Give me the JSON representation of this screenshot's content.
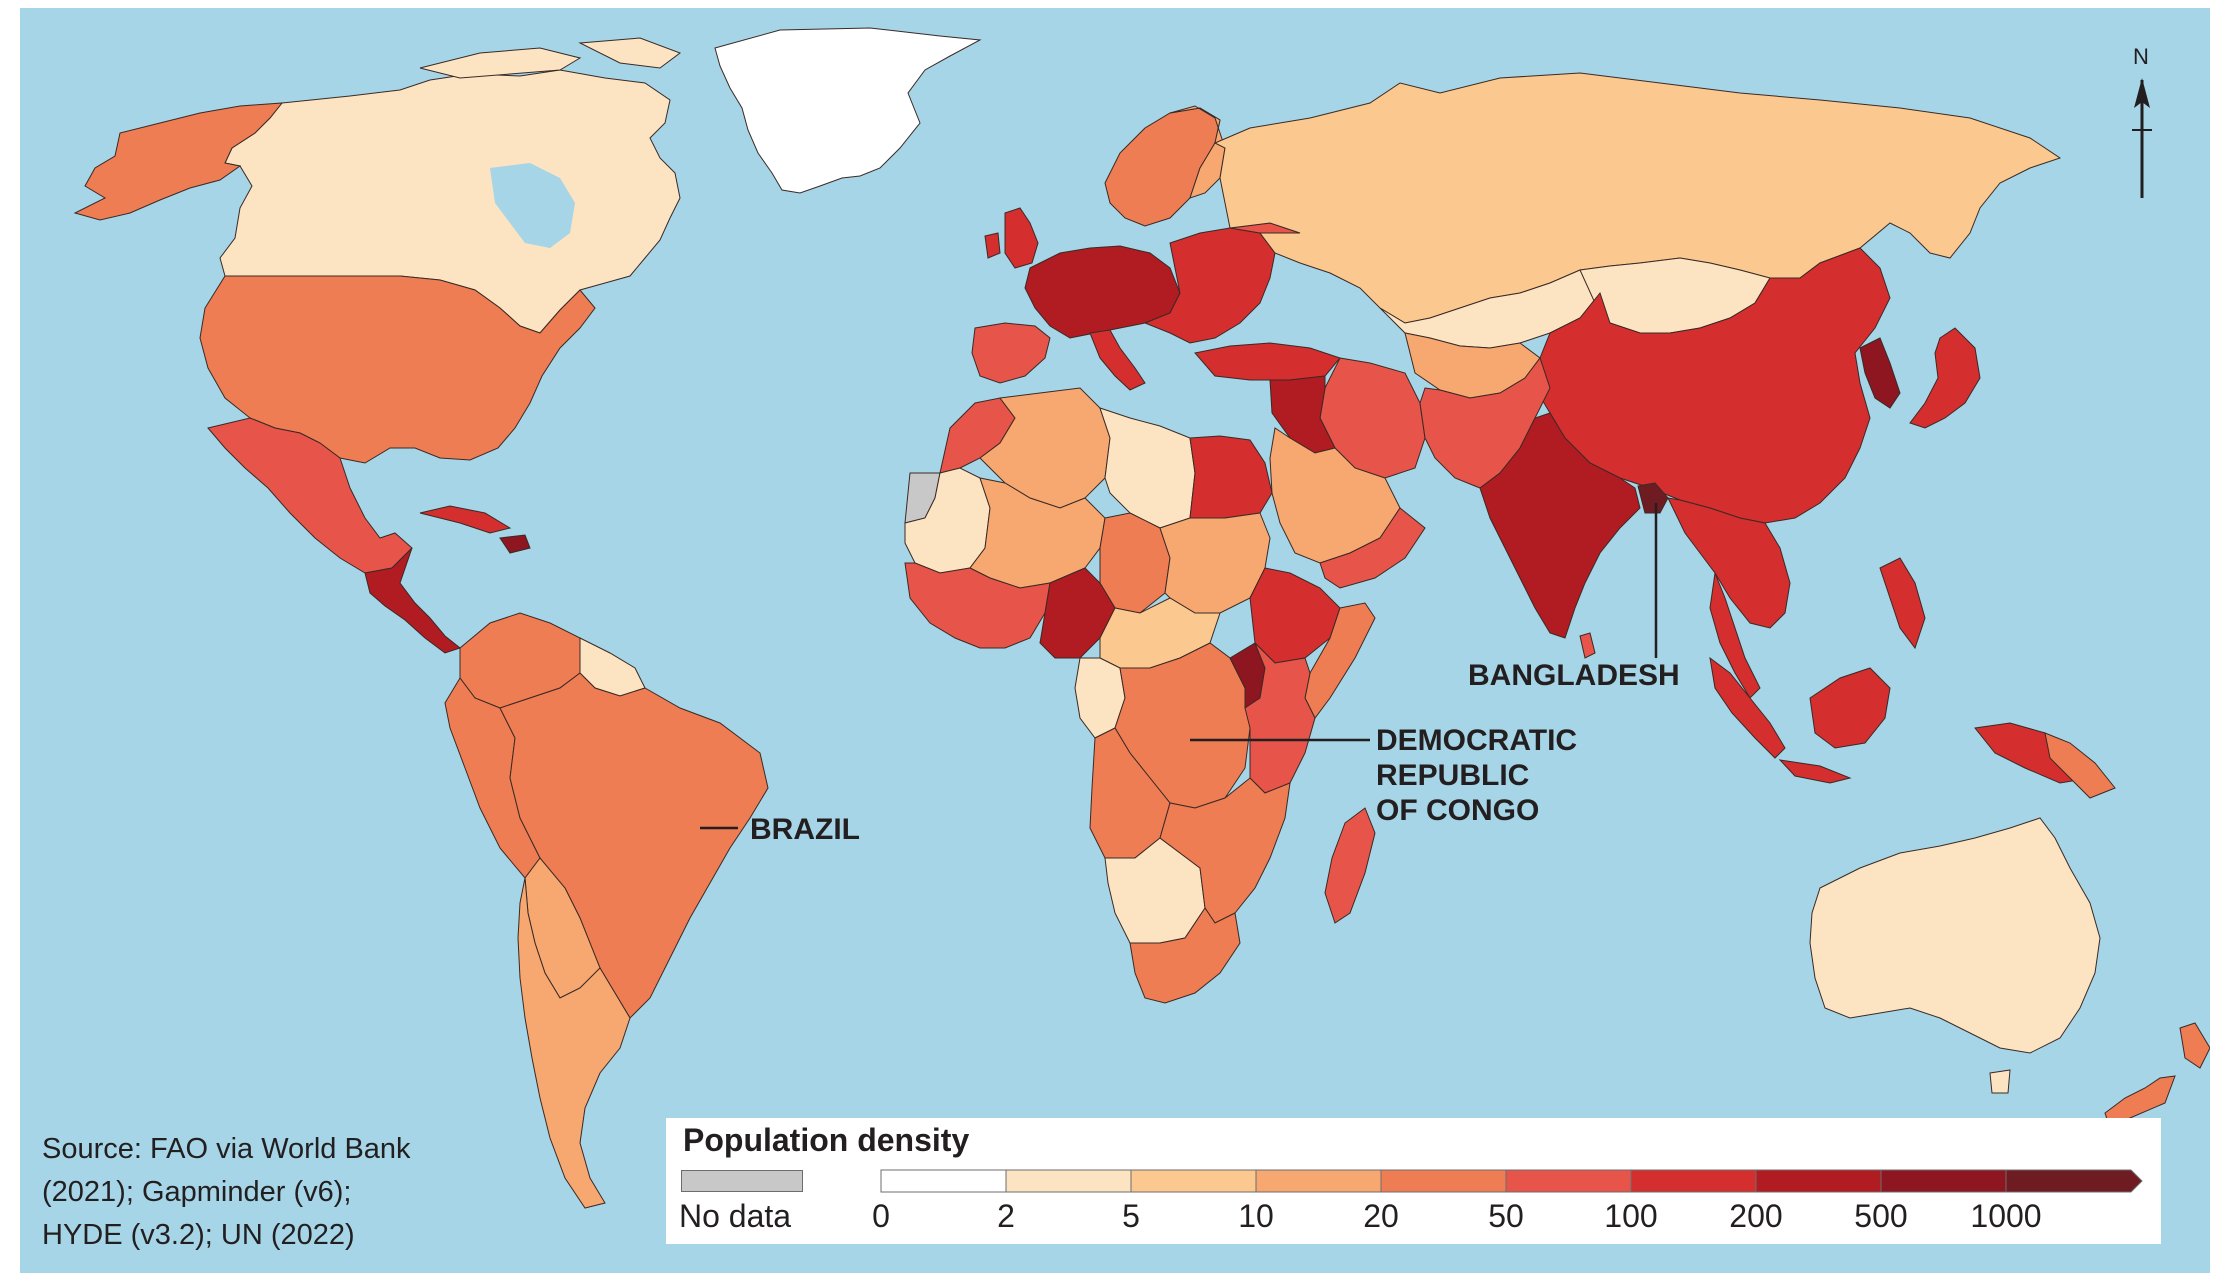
{
  "colors": {
    "ocean": "#a5d5e6",
    "nodata": "#c8c8c8",
    "c0": "#ffffff",
    "c2": "#fce3c2",
    "c5": "#fbc98f",
    "c10": "#f6a870",
    "c20": "#ee7d53",
    "c50": "#e7544a",
    "c100": "#d42e2f",
    "c200": "#b11b22",
    "c500": "#8e1620",
    "c1000": "#6e1c22",
    "border": "#3a2a26"
  },
  "labels": {
    "bangladesh": "BANGLADESH",
    "drc_line1": "DEMOCRATIC",
    "drc_line2": "REPUBLIC",
    "drc_line3": "OF CONGO",
    "brazil": "BRAZIL"
  },
  "north_arrow": "N",
  "source": {
    "line1": "Source: FAO via World Bank",
    "line2": "(2021); Gapminder (v6);",
    "line3": "HYDE (v3.2); UN (2022)"
  },
  "legend": {
    "title": "Population density",
    "nodata_label": "No data",
    "ticks": [
      "0",
      "2",
      "5",
      "10",
      "20",
      "50",
      "100",
      "200",
      "500",
      "1000"
    ]
  }
}
